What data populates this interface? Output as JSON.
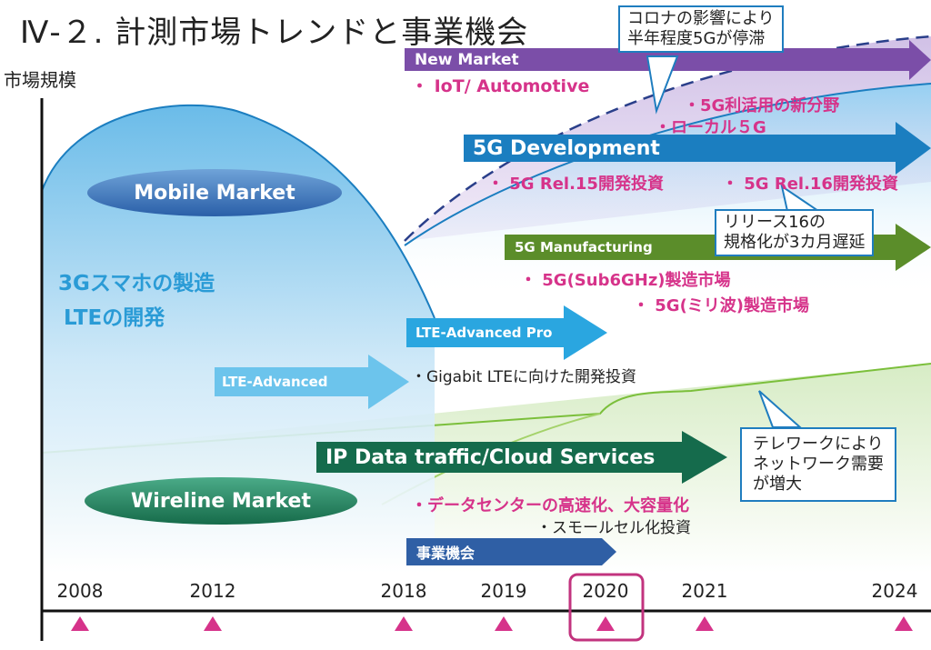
{
  "title": "Ⅳ-２. 計測市場トレンドと事業機会",
  "y_axis_label": "市場規模",
  "markets": {
    "mobile": "Mobile Market",
    "wireline": "Wireline Market"
  },
  "mobile_items": {
    "line1": "3Gスマホの製造",
    "line2": "LTEの開発"
  },
  "arrows": {
    "new_market": "New Market",
    "dev_5g": "5G Development",
    "manufacturing_5g": "5G Manufacturing",
    "lte_adv_pro": "LTE-Advanced Pro",
    "lte_adv": "LTE-Advanced",
    "ip_data": "IP Data traffic/Cloud Services",
    "business": "事業機会"
  },
  "labels": {
    "iot": "・ IoT/ Automotive",
    "new_field": "・5G利活用の新分野",
    "local5g": "・ローカル５G",
    "rel15": "・ 5G Rel.15開発投資",
    "rel16": "・ 5G Rel.16開発投資",
    "sub6": "・ 5G(Sub6GHz)製造市場",
    "mmwave": "・ 5G(ミリ波)製造市場",
    "gigabit": "・Gigabit LTEに向けた開発投資",
    "datacenter": "・データセンターの高速化、大容量化",
    "small_cell": "・スモールセル化投資"
  },
  "callouts": {
    "corona_1": "コロナの影響により",
    "corona_2": "半年程度5Gが停滞",
    "release_1": "リリース16の",
    "release_2": "規格化が3カ月遅延",
    "telework_1": "テレワークにより",
    "telework_2": "ネットワーク需要",
    "telework_3": "が増大"
  },
  "years": [
    "2008",
    "2012",
    "2018",
    "2019",
    "2020",
    "2021",
    "2024"
  ],
  "highlight_year": "2020",
  "colors": {
    "new_market_arrow": "#7b4ea8",
    "dev_5g_arrow": "#1b7ec0",
    "manufacturing_arrow": "#5b8d2a",
    "lte_arrow": "#2aa6e0",
    "lte_adv_arrow": "#6cc4ec",
    "ip_arrow": "#156b4c",
    "business_arrow": "#2f5fa5",
    "pink": "#d6338a",
    "highlight_box": "#c2337e"
  }
}
